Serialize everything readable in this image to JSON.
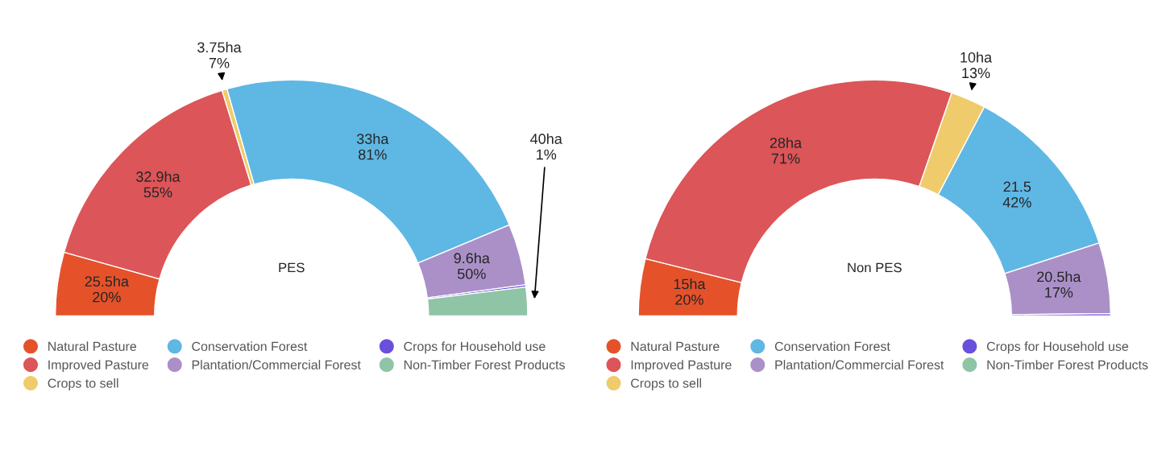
{
  "chart_data": [
    {
      "type": "donut",
      "title": "PES",
      "legend": "bottom",
      "categories": [
        "Natural Pasture",
        "Improved Pasture",
        "Crops to sell",
        "Conservation Forest",
        "Plantation/Commercial Forest",
        "Crops for Household use",
        "Non-Timber Forest Products"
      ],
      "values": [
        8.7,
        31.8,
        0.7,
        46.2,
        8.4,
        0.3,
        3.9
      ],
      "annotations": [
        {
          "text": "25.5ha\n20%",
          "x": "Natural Pasture"
        },
        {
          "text": "32.9ha\n55%",
          "x": "Improved Pasture"
        },
        {
          "text": "3.75ha\n7%",
          "x": "Crops to sell"
        },
        {
          "text": "33ha\n81%",
          "x": "Conservation Forest"
        },
        {
          "text": "9.6ha\n50%",
          "x": "Plantation/Commercial Forest"
        },
        {
          "text": "40ha\n1%",
          "x": "Non-Timber Forest Products"
        }
      ],
      "colors": [
        "#e5522a",
        "#dc5558",
        "#f0cb6b",
        "#5fb7e4",
        "#ab90c8",
        "#6a4fdc",
        "#8fc4a6"
      ]
    },
    {
      "type": "donut",
      "title": "Non PES",
      "legend": "bottom",
      "categories": [
        "Natural Pasture",
        "Improved Pasture",
        "Crops to sell",
        "Conservation Forest",
        "Plantation/Commercial Forest",
        "Crops for Household use",
        "Non-Timber Forest Products"
      ],
      "values": [
        7.8,
        52.8,
        4.8,
        24.6,
        9.7,
        0.3,
        0
      ],
      "annotations": [
        {
          "text": "15ha\n20%",
          "x": "Natural Pasture"
        },
        {
          "text": "28ha\n71%",
          "x": "Improved Pasture"
        },
        {
          "text": "10ha\n13%",
          "x": "Crops to sell"
        },
        {
          "text": "21.5\n42%",
          "x": "Conservation Forest"
        },
        {
          "text": "20.5ha\n17%",
          "x": "Plantation/Commercial Forest"
        }
      ],
      "colors": [
        "#e5522a",
        "#dc5558",
        "#f0cb6b",
        "#5fb7e4",
        "#ab90c8",
        "#6a4fdc",
        "#8fc4a6"
      ]
    }
  ]
}
